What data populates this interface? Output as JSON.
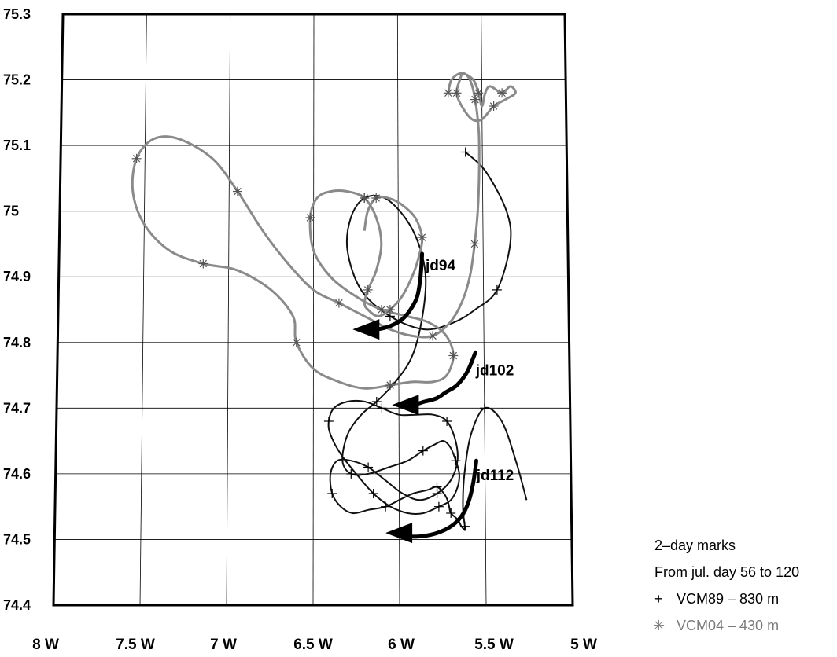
{
  "chart_data": {
    "type": "line",
    "title": "",
    "xlabel": "",
    "ylabel": "",
    "xlim": [
      -8,
      -5
    ],
    "ylim": [
      74.4,
      75.3
    ],
    "grid": true,
    "x_ticks": [
      -8,
      -7.5,
      -7,
      -6.5,
      -6,
      -5.5,
      -5
    ],
    "x_tick_labels": [
      "8 W",
      "7.5 W",
      "7 W",
      "6.5 W",
      "6 W",
      "5.5 W",
      "5 W"
    ],
    "y_ticks": [
      74.4,
      74.5,
      74.6,
      74.7,
      74.8,
      74.9,
      75.0,
      75.1,
      75.2,
      75.3
    ],
    "y_tick_labels": [
      "74.4",
      "74.5",
      "74.6",
      "74.7",
      "74.8",
      "74.9",
      "75",
      "75.1",
      "75.2",
      "75.3"
    ],
    "legend": {
      "placement": "bottom-right",
      "lines": [
        "2–day marks",
        "From jul. day 56 to 120"
      ],
      "entries": [
        {
          "symbol": "+",
          "label": "VCM89 – 830 m",
          "color": "#000000"
        },
        {
          "symbol": "✳",
          "label": "VCM04 – 430 m",
          "color": "#7a7a7a"
        }
      ]
    },
    "annotations": [
      {
        "text": "jd94",
        "x": -5.84,
        "y": 74.91
      },
      {
        "text": "jd102",
        "x": -5.55,
        "y": 74.75
      },
      {
        "text": "jd112",
        "x": -5.55,
        "y": 74.59
      }
    ],
    "series": [
      {
        "name": "VCM89 – 830 m",
        "color": "#111111",
        "marker": "+",
        "x": [
          -5.6,
          -5.48,
          -5.36,
          -5.34,
          -5.42,
          -5.55,
          -5.68,
          -5.85,
          -6.05,
          -6.22,
          -6.3,
          -6.28,
          -6.2,
          -6.08,
          -5.96,
          -5.88,
          -5.84,
          -5.86,
          -5.92,
          -6.02,
          -6.13,
          -6.22,
          -6.3,
          -6.33,
          -6.28,
          -6.18,
          -6.06,
          -5.95,
          -5.86,
          -5.79,
          -5.74,
          -5.7,
          -5.67,
          -5.65,
          -5.66,
          -5.7,
          -5.77,
          -5.86,
          -5.95,
          -6.05,
          -6.15,
          -6.25,
          -6.34,
          -6.4,
          -6.41,
          -6.38,
          -6.3,
          -6.2,
          -6.1,
          -6.0,
          -5.9,
          -5.8,
          -5.72,
          -5.67,
          -5.66,
          -5.7,
          -5.78,
          -5.88,
          -5.98,
          -6.08,
          -6.18,
          -6.28,
          -6.36,
          -6.4,
          -6.39,
          -6.34,
          -6.27,
          -6.18,
          -6.08,
          -6.0,
          -5.92,
          -5.84,
          -5.78,
          -5.74,
          -5.72,
          -5.71,
          -5.7,
          -5.66,
          -5.64,
          -5.62,
          -5.62,
          -5.63,
          -5.62,
          -5.58,
          -5.5,
          -5.4,
          -5.32,
          -5.26
        ],
        "y": [
          75.09,
          75.06,
          75.0,
          74.95,
          74.88,
          74.85,
          74.83,
          74.82,
          74.84,
          74.88,
          74.94,
          74.99,
          75.02,
          75.02,
          74.99,
          74.95,
          74.9,
          74.84,
          74.78,
          74.74,
          74.71,
          74.69,
          74.66,
          74.62,
          74.6,
          74.6,
          74.61,
          74.62,
          74.635,
          74.645,
          74.65,
          74.64,
          74.62,
          74.6,
          74.58,
          74.56,
          74.55,
          74.54,
          74.54,
          74.55,
          74.57,
          74.6,
          74.63,
          74.66,
          74.68,
          74.7,
          74.71,
          74.71,
          74.7,
          74.69,
          74.69,
          74.69,
          74.68,
          74.65,
          74.62,
          74.59,
          74.57,
          74.56,
          74.57,
          74.59,
          74.61,
          74.62,
          74.62,
          74.6,
          74.57,
          74.55,
          74.54,
          74.545,
          74.55,
          74.56,
          74.57,
          74.575,
          74.58,
          74.57,
          74.56,
          74.55,
          74.54,
          74.53,
          74.52,
          74.515,
          74.52,
          74.55,
          74.6,
          74.66,
          74.7,
          74.68,
          74.62,
          74.56
        ]
      },
      {
        "name": "VCM04 – 430 m",
        "color": "#8a8a8a",
        "marker": "*",
        "x": [
          -5.7,
          -5.68,
          -5.62,
          -5.55,
          -5.52,
          -5.5,
          -5.48,
          -5.45,
          -5.38,
          -5.33,
          -5.3,
          -5.36,
          -5.43,
          -5.5,
          -5.56,
          -5.62,
          -5.65,
          -5.63,
          -5.61,
          -5.57,
          -5.54,
          -5.52,
          -5.52,
          -5.53,
          -5.55,
          -5.58,
          -5.63,
          -5.7,
          -5.8,
          -5.92,
          -6.05,
          -6.2,
          -6.35,
          -6.5,
          -6.65,
          -6.8,
          -6.95,
          -7.1,
          -7.3,
          -7.45,
          -7.55,
          -7.57,
          -7.5,
          -7.35,
          -7.15,
          -6.95,
          -6.75,
          -6.62,
          -6.6,
          -6.5,
          -6.35,
          -6.2,
          -6.05,
          -5.92,
          -5.8,
          -5.72,
          -5.68,
          -5.72,
          -5.82,
          -5.95,
          -6.1,
          -6.25,
          -6.4,
          -6.5,
          -6.52,
          -6.48,
          -6.4,
          -6.3,
          -6.2,
          -6.13,
          -6.1,
          -6.13,
          -6.18,
          -6.2,
          -6.18,
          -6.12,
          -6.05,
          -5.98,
          -5.92,
          -5.88,
          -5.86,
          -5.9,
          -5.98,
          -6.06,
          -6.13,
          -6.18,
          -6.2
        ],
        "y": [
          75.18,
          75.2,
          75.21,
          75.2,
          75.18,
          75.16,
          75.18,
          75.19,
          75.18,
          75.19,
          75.18,
          75.17,
          75.16,
          75.14,
          75.14,
          75.16,
          75.18,
          75.2,
          75.21,
          75.2,
          75.17,
          75.12,
          75.06,
          75.0,
          74.95,
          74.9,
          74.86,
          74.83,
          74.81,
          74.81,
          74.82,
          74.84,
          74.86,
          74.88,
          74.92,
          74.97,
          75.03,
          75.08,
          75.11,
          75.11,
          75.08,
          75.03,
          74.98,
          74.94,
          74.92,
          74.91,
          74.88,
          74.84,
          74.8,
          74.76,
          74.74,
          74.73,
          74.735,
          74.74,
          74.74,
          74.75,
          74.78,
          74.81,
          74.83,
          74.84,
          74.85,
          74.87,
          74.9,
          74.94,
          74.99,
          75.02,
          75.03,
          75.03,
          75.02,
          74.99,
          74.95,
          74.91,
          74.88,
          74.86,
          74.85,
          74.84,
          74.85,
          74.87,
          74.9,
          74.93,
          74.96,
          74.99,
          75.01,
          75.02,
          75.02,
          75.0,
          74.97
        ]
      }
    ],
    "arrows": [
      {
        "x": [
          -5.86,
          -5.87,
          -5.89,
          -5.93,
          -5.98,
          -6.05,
          -6.13,
          -6.2,
          -6.27
        ],
        "y": [
          74.935,
          74.9,
          74.87,
          74.85,
          74.835,
          74.825,
          74.82,
          74.82,
          74.82
        ]
      },
      {
        "x": [
          -5.55,
          -5.6,
          -5.66,
          -5.72,
          -5.78,
          -5.85,
          -5.92,
          -5.99,
          -6.04
        ],
        "y": [
          74.785,
          74.755,
          74.735,
          74.725,
          74.715,
          74.71,
          74.705,
          74.705,
          74.705
        ]
      },
      {
        "x": [
          -5.55,
          -5.57,
          -5.6,
          -5.64,
          -5.7,
          -5.78,
          -5.87,
          -5.95,
          -6.02,
          -6.08
        ],
        "y": [
          74.62,
          74.585,
          74.555,
          74.535,
          74.52,
          74.51,
          74.505,
          74.505,
          74.51,
          74.51
        ]
      }
    ]
  }
}
